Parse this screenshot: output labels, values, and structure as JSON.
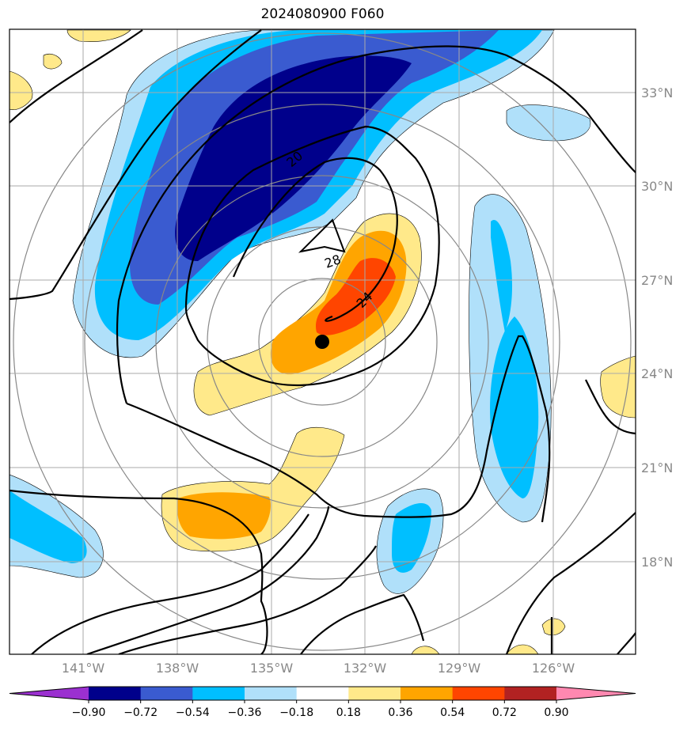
{
  "title": "2024080900 F060",
  "lat_labels": [
    "33°N",
    "30°N",
    "27°N",
    "24°N",
    "21°N",
    "18°N"
  ],
  "lon_labels": [
    "141°W",
    "138°W",
    "135°W",
    "132°W",
    "129°W",
    "126°W"
  ],
  "contour_labels": [
    "20",
    "24",
    "28"
  ],
  "colorbar": {
    "ticks": [
      "−0.90",
      "−0.72",
      "−0.54",
      "−0.36",
      "−0.18",
      "0.18",
      "0.36",
      "0.54",
      "0.72",
      "0.90"
    ],
    "colors": [
      "#9b30d0",
      "#00008b",
      "#3a5bd0",
      "#00bfff",
      "#b0e0fa",
      "#ffffff",
      "#ffe98a",
      "#ffa500",
      "#ff4500",
      "#b22222",
      "#ff88b0"
    ]
  },
  "storm_center_marker": "filled-circle"
}
